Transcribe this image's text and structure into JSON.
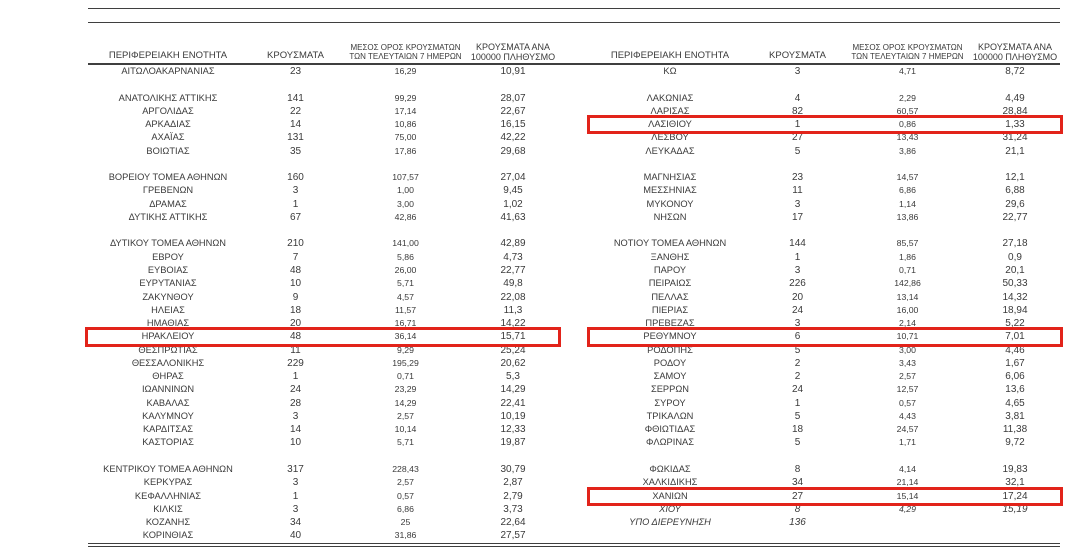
{
  "highlight_color": "#e2231a",
  "columns": [
    {
      "label": "ΠΕΡΙΦΕΡΕΙΑΚΗ ΕΝΟΤΗΤΑ"
    },
    {
      "label": "ΚΡΟΥΣΜΑΤΑ"
    },
    {
      "label": "ΜΕΣΟΣ ΟΡΟΣ ΚΡΟΥΣΜΑΤΩΝ ΤΩΝ ΤΕΛΕΥΤΑΙΩΝ 7 ΗΜΕΡΩΝ"
    },
    {
      "label": "ΚΡΟΥΣΜΑΤΑ ΑΝΑ 100000 ΠΛΗΘΥΣΜΟ"
    }
  ],
  "left_rows": [
    {
      "name": "ΑΙΤΩΛΟΑΚΑΡΝΑΝΙΑΣ",
      "cases": "23",
      "avg7": "16,29",
      "per100k": "10,91"
    },
    {
      "blank": true
    },
    {
      "name": "ΑΝΑΤΟΛΙΚΗΣ ΑΤΤΙΚΗΣ",
      "cases": "141",
      "avg7": "99,29",
      "per100k": "28,07"
    },
    {
      "name": "ΑΡΓΟΛΙΔΑΣ",
      "cases": "22",
      "avg7": "17,14",
      "per100k": "22,67"
    },
    {
      "name": "ΑΡΚΑΔΙΑΣ",
      "cases": "14",
      "avg7": "10,86",
      "per100k": "16,15"
    },
    {
      "name": "ΑΧΑΪΑΣ",
      "cases": "131",
      "avg7": "75,00",
      "per100k": "42,22"
    },
    {
      "name": "ΒΟΙΩΤΙΑΣ",
      "cases": "35",
      "avg7": "17,86",
      "per100k": "29,68"
    },
    {
      "blank": true
    },
    {
      "name": "ΒΟΡΕΙΟΥ ΤΟΜΕΑ ΑΘΗΝΩΝ",
      "cases": "160",
      "avg7": "107,57",
      "per100k": "27,04"
    },
    {
      "name": "ΓΡΕΒΕΝΩΝ",
      "cases": "3",
      "avg7": "1,00",
      "per100k": "9,45"
    },
    {
      "name": "ΔΡΑΜΑΣ",
      "cases": "1",
      "avg7": "3,00",
      "per100k": "1,02"
    },
    {
      "name": "ΔΥΤΙΚΗΣ ΑΤΤΙΚΗΣ",
      "cases": "67",
      "avg7": "42,86",
      "per100k": "41,63"
    },
    {
      "blank": true
    },
    {
      "name": "ΔΥΤΙΚΟΥ ΤΟΜΕΑ ΑΘΗΝΩΝ",
      "cases": "210",
      "avg7": "141,00",
      "per100k": "42,89"
    },
    {
      "name": "ΕΒΡΟΥ",
      "cases": "7",
      "avg7": "5,86",
      "per100k": "4,73"
    },
    {
      "name": "ΕΥΒΟΙΑΣ",
      "cases": "48",
      "avg7": "26,00",
      "per100k": "22,77"
    },
    {
      "name": "ΕΥΡΥΤΑΝΙΑΣ",
      "cases": "10",
      "avg7": "5,71",
      "per100k": "49,8"
    },
    {
      "name": "ΖΑΚΥΝΘΟΥ",
      "cases": "9",
      "avg7": "4,57",
      "per100k": "22,08"
    },
    {
      "name": "ΗΛΕΙΑΣ",
      "cases": "18",
      "avg7": "11,57",
      "per100k": "11,3"
    },
    {
      "name": "ΗΜΑΘΙΑΣ",
      "cases": "20",
      "avg7": "16,71",
      "per100k": "14,22"
    },
    {
      "name": "ΗΡΑΚΛΕΙΟΥ",
      "cases": "48",
      "avg7": "36,14",
      "per100k": "15,71",
      "highlight": true
    },
    {
      "name": "ΘΕΣΠΡΩΤΙΑΣ",
      "cases": "11",
      "avg7": "9,29",
      "per100k": "25,24"
    },
    {
      "name": "ΘΕΣΣΑΛΟΝΙΚΗΣ",
      "cases": "229",
      "avg7": "195,29",
      "per100k": "20,62"
    },
    {
      "name": "ΘΗΡΑΣ",
      "cases": "1",
      "avg7": "0,71",
      "per100k": "5,3"
    },
    {
      "name": "ΙΩΑΝΝΙΝΩΝ",
      "cases": "24",
      "avg7": "23,29",
      "per100k": "14,29"
    },
    {
      "name": "ΚΑΒΑΛΑΣ",
      "cases": "28",
      "avg7": "14,29",
      "per100k": "22,41"
    },
    {
      "name": "ΚΑΛΥΜΝΟΥ",
      "cases": "3",
      "avg7": "2,57",
      "per100k": "10,19"
    },
    {
      "name": "ΚΑΡΔΙΤΣΑΣ",
      "cases": "14",
      "avg7": "10,14",
      "per100k": "12,33"
    },
    {
      "name": "ΚΑΣΤΟΡΙΑΣ",
      "cases": "10",
      "avg7": "5,71",
      "per100k": "19,87"
    },
    {
      "blank": true
    },
    {
      "name": "ΚΕΝΤΡΙΚΟΥ ΤΟΜΕΑ ΑΘΗΝΩΝ",
      "cases": "317",
      "avg7": "228,43",
      "per100k": "30,79"
    },
    {
      "name": "ΚΕΡΚΥΡΑΣ",
      "cases": "3",
      "avg7": "2,57",
      "per100k": "2,87"
    },
    {
      "name": "ΚΕΦΑΛΛΗΝΙΑΣ",
      "cases": "1",
      "avg7": "0,57",
      "per100k": "2,79"
    },
    {
      "name": "ΚΙΛΚΙΣ",
      "cases": "3",
      "avg7": "6,86",
      "per100k": "3,73"
    },
    {
      "name": "ΚΟΖΑΝΗΣ",
      "cases": "34",
      "avg7": "25",
      "per100k": "22,64"
    },
    {
      "name": "ΚΟΡΙΝΘΙΑΣ",
      "cases": "40",
      "avg7": "31,86",
      "per100k": "27,57"
    }
  ],
  "right_rows": [
    {
      "name": "ΚΩ",
      "cases": "3",
      "avg7": "4,71",
      "per100k": "8,72"
    },
    {
      "blank": true
    },
    {
      "name": "ΛΑΚΩΝΙΑΣ",
      "cases": "4",
      "avg7": "2,29",
      "per100k": "4,49"
    },
    {
      "name": "ΛΑΡΙΣΑΣ",
      "cases": "82",
      "avg7": "60,57",
      "per100k": "28,84"
    },
    {
      "name": "ΛΑΣΙΘΙΟΥ",
      "cases": "1",
      "avg7": "0,86",
      "per100k": "1,33",
      "highlight": true
    },
    {
      "name": "ΛΕΣΒΟΥ",
      "cases": "27",
      "avg7": "13,43",
      "per100k": "31,24"
    },
    {
      "name": "ΛΕΥΚΑΔΑΣ",
      "cases": "5",
      "avg7": "3,86",
      "per100k": "21,1"
    },
    {
      "blank": true
    },
    {
      "name": "ΜΑΓΝΗΣΙΑΣ",
      "cases": "23",
      "avg7": "14,57",
      "per100k": "12,1"
    },
    {
      "name": "ΜΕΣΣΗΝΙΑΣ",
      "cases": "11",
      "avg7": "6,86",
      "per100k": "6,88"
    },
    {
      "name": "ΜΥΚΟΝΟΥ",
      "cases": "3",
      "avg7": "1,14",
      "per100k": "29,6"
    },
    {
      "name": "ΝΗΣΩΝ",
      "cases": "17",
      "avg7": "13,86",
      "per100k": "22,77"
    },
    {
      "blank": true
    },
    {
      "name": "ΝΟΤΙΟΥ ΤΟΜΕΑ ΑΘΗΝΩΝ",
      "cases": "144",
      "avg7": "85,57",
      "per100k": "27,18"
    },
    {
      "name": "ΞΑΝΘΗΣ",
      "cases": "1",
      "avg7": "1,86",
      "per100k": "0,9"
    },
    {
      "name": "ΠΑΡΟΥ",
      "cases": "3",
      "avg7": "0,71",
      "per100k": "20,1"
    },
    {
      "name": "ΠΕΙΡΑΙΩΣ",
      "cases": "226",
      "avg7": "142,86",
      "per100k": "50,33"
    },
    {
      "name": "ΠΕΛΛΑΣ",
      "cases": "20",
      "avg7": "13,14",
      "per100k": "14,32"
    },
    {
      "name": "ΠΙΕΡΙΑΣ",
      "cases": "24",
      "avg7": "16,00",
      "per100k": "18,94"
    },
    {
      "name": "ΠΡΕΒΕΖΑΣ",
      "cases": "3",
      "avg7": "2,14",
      "per100k": "5,22"
    },
    {
      "name": "ΡΕΘΥΜΝΟΥ",
      "cases": "6",
      "avg7": "10,71",
      "per100k": "7,01",
      "highlight": true
    },
    {
      "name": "ΡΟΔΟΠΗΣ",
      "cases": "5",
      "avg7": "3,00",
      "per100k": "4,46"
    },
    {
      "name": "ΡΟΔΟΥ",
      "cases": "2",
      "avg7": "3,43",
      "per100k": "1,67"
    },
    {
      "name": "ΣΑΜΟΥ",
      "cases": "2",
      "avg7": "2,57",
      "per100k": "6,06"
    },
    {
      "name": "ΣΕΡΡΩΝ",
      "cases": "24",
      "avg7": "12,57",
      "per100k": "13,6"
    },
    {
      "name": "ΣΥΡΟΥ",
      "cases": "1",
      "avg7": "0,57",
      "per100k": "4,65"
    },
    {
      "name": "ΤΡΙΚΑΛΩΝ",
      "cases": "5",
      "avg7": "4,43",
      "per100k": "3,81"
    },
    {
      "name": "ΦΘΙΩΤΙΔΑΣ",
      "cases": "18",
      "avg7": "24,57",
      "per100k": "11,38"
    },
    {
      "name": "ΦΛΩΡΙΝΑΣ",
      "cases": "5",
      "avg7": "1,71",
      "per100k": "9,72"
    },
    {
      "blank": true
    },
    {
      "name": "ΦΩΚΙΔΑΣ",
      "cases": "8",
      "avg7": "4,14",
      "per100k": "19,83"
    },
    {
      "name": "ΧΑΛΚΙΔΙΚΗΣ",
      "cases": "34",
      "avg7": "21,14",
      "per100k": "32,1"
    },
    {
      "name": "ΧΑΝΙΩΝ",
      "cases": "27",
      "avg7": "15,14",
      "per100k": "17,24",
      "highlight": true
    },
    {
      "name": "ΧΙΟΥ",
      "cases": "8",
      "avg7": "4,29",
      "per100k": "15,19",
      "italic": true
    },
    {
      "name": "ΥΠΟ ΔΙΕΡΕΥΝΗΣΗ",
      "cases": "136",
      "avg7": "",
      "per100k": "",
      "italic": true
    },
    {
      "blank": true
    }
  ]
}
